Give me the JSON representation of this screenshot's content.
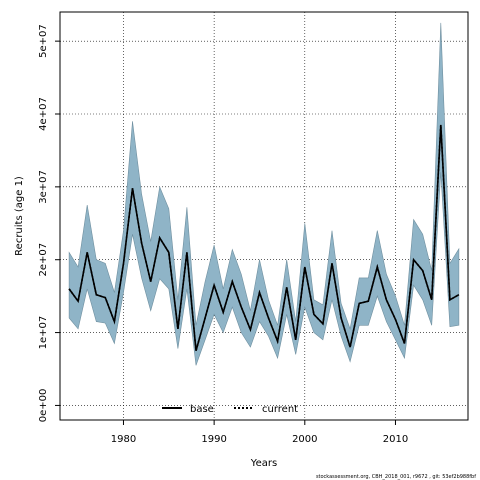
{
  "chart_data": {
    "type": "line",
    "title": "",
    "xlabel": "Years",
    "ylabel": "Recruits (age 1)",
    "xlim": [
      1973,
      2018
    ],
    "ylim": [
      -2000000,
      54000000
    ],
    "x_ticks": [
      1980,
      1990,
      2000,
      2010
    ],
    "x_tick_labels": [
      "1980",
      "1990",
      "2000",
      "2010"
    ],
    "y_ticks": [
      0,
      10000000,
      20000000,
      30000000,
      40000000,
      50000000
    ],
    "y_tick_labels": [
      "0e+00",
      "1e+07",
      "2e+07",
      "3e+07",
      "4e+07",
      "5e+07"
    ],
    "grid": true,
    "legend_placement": "bottom-center",
    "colors": {
      "band_fill": "#8fb4c7",
      "band_edge": "#6f8f9f",
      "line": "#000000"
    },
    "years": [
      1974,
      1975,
      1976,
      1977,
      1978,
      1979,
      1980,
      1981,
      1982,
      1983,
      1984,
      1985,
      1986,
      1987,
      1988,
      1989,
      1990,
      1991,
      1992,
      1993,
      1994,
      1995,
      1996,
      1997,
      1998,
      1999,
      2000,
      2001,
      2002,
      2003,
      2004,
      2005,
      2006,
      2007,
      2008,
      2009,
      2010,
      2011,
      2012,
      2013,
      2014,
      2015,
      2016,
      2017
    ],
    "band_lower": [
      12000000,
      10500000,
      16000000,
      11500000,
      11300000,
      8500000,
      15500000,
      23500000,
      17500000,
      13000000,
      17400000,
      16000000,
      7800000,
      16000000,
      5500000,
      9000000,
      12500000,
      10000000,
      13500000,
      10000000,
      8000000,
      11500000,
      9500000,
      6500000,
      12500000,
      7000000,
      13500000,
      10000000,
      9000000,
      14500000,
      9500000,
      6000000,
      11000000,
      11000000,
      15000000,
      11500000,
      9000000,
      6500000,
      16500000,
      14500000,
      11000000,
      32000000,
      10800000,
      11000000
    ],
    "band_upper": [
      21000000,
      19000000,
      27500000,
      20000000,
      19500000,
      15500000,
      24000000,
      39000000,
      29000000,
      22500000,
      30000000,
      27000000,
      14500000,
      27200000,
      11000000,
      17000000,
      22000000,
      16000000,
      21400000,
      18000000,
      13000000,
      20000000,
      14500000,
      11000000,
      20000000,
      11500000,
      25000000,
      14500000,
      13800000,
      24000000,
      14000000,
      10500000,
      17500000,
      17500000,
      24000000,
      18000000,
      15000000,
      11000000,
      25500000,
      23500000,
      18500000,
      52500000,
      19500000,
      21500000
    ],
    "series": [
      {
        "name": "base",
        "values": [
          16000000,
          14300000,
          21000000,
          15200000,
          14800000,
          11500000,
          19500000,
          29800000,
          22300000,
          17000000,
          23000000,
          21000000,
          10500000,
          21000000,
          7500000,
          12000000,
          16500000,
          12800000,
          17000000,
          13500000,
          10400000,
          15500000,
          12000000,
          8800000,
          16200000,
          9000000,
          19000000,
          12500000,
          11200000,
          19500000,
          12000000,
          8000000,
          14000000,
          14300000,
          19000000,
          14500000,
          11800000,
          8500000,
          20000000,
          18500000,
          14500000,
          38500000,
          14500000,
          15200000
        ]
      },
      {
        "name": "current",
        "values": [
          16000000,
          14300000,
          21000000,
          15200000,
          14800000,
          11500000,
          19500000,
          29800000,
          22300000,
          17000000,
          23000000,
          21000000,
          10500000,
          21000000,
          7500000,
          12000000,
          16500000,
          12800000,
          17000000,
          13500000,
          10400000,
          15500000,
          12000000,
          8800000,
          16200000,
          9000000,
          19000000,
          12500000,
          11200000,
          19500000,
          12000000,
          8000000,
          14000000,
          14300000,
          19000000,
          14500000,
          11800000,
          8500000,
          20000000,
          18500000,
          14500000,
          38500000,
          14500000,
          15200000
        ]
      }
    ]
  },
  "legend": {
    "base_label": "base",
    "current_label": "current"
  },
  "footnote": "stockassessment.org, CBH_2018_001, r9672 , git: 53ef2b988fbf"
}
